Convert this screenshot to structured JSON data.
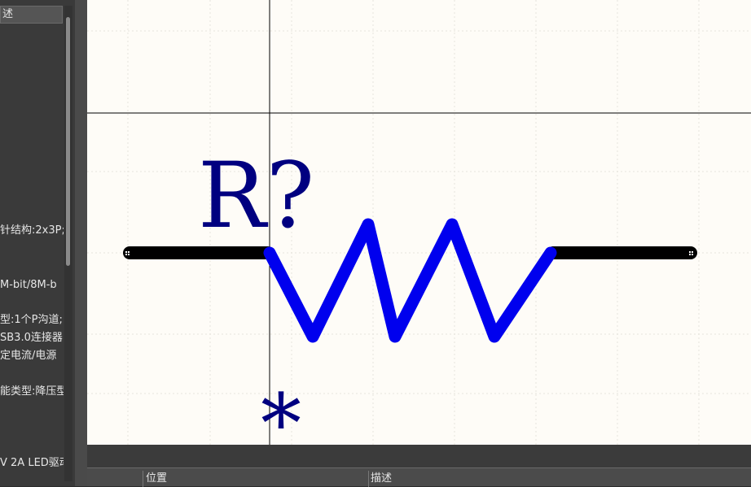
{
  "left_panel": {
    "header": "述",
    "rows": [
      {
        "text": "针结构:2x3P;"
      },
      {
        "text": "M-bit/8M-b"
      },
      {
        "text": "型:1个P沟道;"
      },
      {
        "text": "SB3.0连接器"
      },
      {
        "text": "定电流/电源"
      },
      {
        "text": "能类型:降压型"
      },
      {
        "text": "V 2A LED驱动"
      }
    ]
  },
  "schematic": {
    "designator": "R?",
    "marker": "*",
    "colors": {
      "canvas": "#fefcf7",
      "resistor_body": "#0000ee",
      "text": "#000080",
      "pin": "#000000"
    }
  },
  "bottom_panel": {
    "columns": [
      {
        "label": "位置"
      },
      {
        "label": "描述"
      }
    ]
  }
}
